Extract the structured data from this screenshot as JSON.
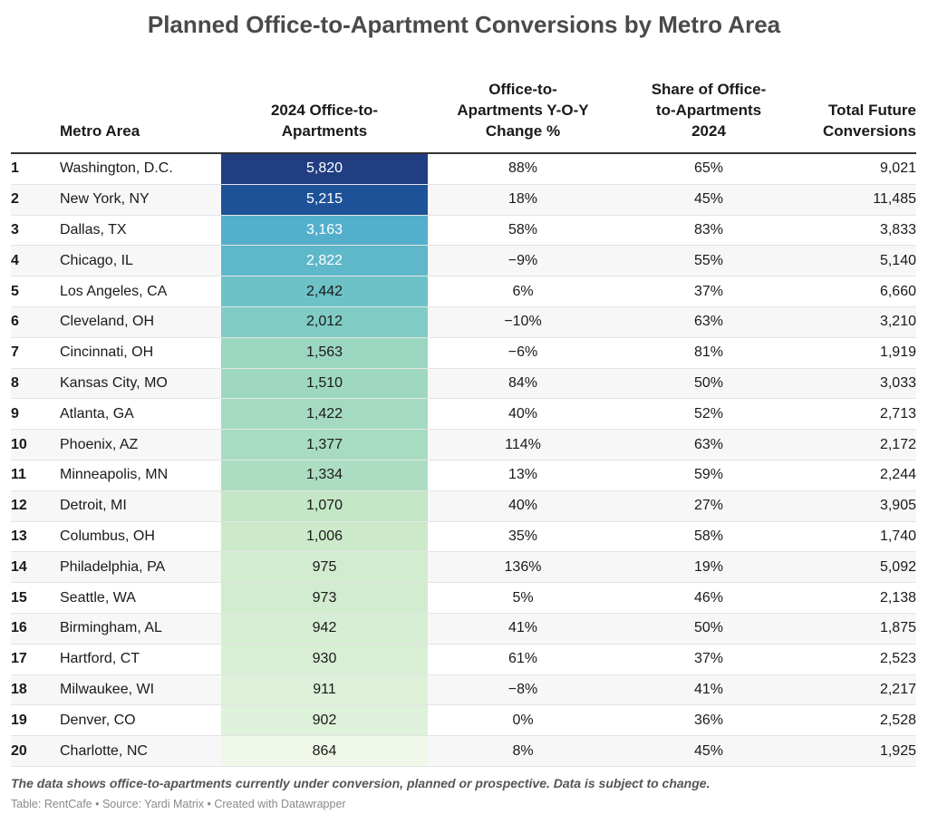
{
  "chart_data": {
    "type": "table",
    "title": "Planned Office-to-Apartment Conversions by Metro Area",
    "columns": [
      "",
      "Metro Area",
      "2024 Office-to-\nApartments",
      "Office-to-\nApartments Y-O-Y\nChange %",
      "Share of Office-\nto-Apartments\n2024",
      "Total Future\nConversions"
    ],
    "rows": [
      {
        "rank": "1",
        "metro": "Washington, D.C.",
        "value": 5820,
        "value_label": "5,820",
        "yoy": "88%",
        "share": "65%",
        "total": "9,021"
      },
      {
        "rank": "2",
        "metro": "New York, NY",
        "value": 5215,
        "value_label": "5,215",
        "yoy": "18%",
        "share": "45%",
        "total": "11,485"
      },
      {
        "rank": "3",
        "metro": "Dallas, TX",
        "value": 3163,
        "value_label": "3,163",
        "yoy": "58%",
        "share": "83%",
        "total": "3,833"
      },
      {
        "rank": "4",
        "metro": "Chicago, IL",
        "value": 2822,
        "value_label": "2,822",
        "yoy": "−9%",
        "share": "55%",
        "total": "5,140"
      },
      {
        "rank": "5",
        "metro": "Los Angeles, CA",
        "value": 2442,
        "value_label": "2,442",
        "yoy": "6%",
        "share": "37%",
        "total": "6,660"
      },
      {
        "rank": "6",
        "metro": "Cleveland, OH",
        "value": 2012,
        "value_label": "2,012",
        "yoy": "−10%",
        "share": "63%",
        "total": "3,210"
      },
      {
        "rank": "7",
        "metro": "Cincinnati, OH",
        "value": 1563,
        "value_label": "1,563",
        "yoy": "−6%",
        "share": "81%",
        "total": "1,919"
      },
      {
        "rank": "8",
        "metro": "Kansas City, MO",
        "value": 1510,
        "value_label": "1,510",
        "yoy": "84%",
        "share": "50%",
        "total": "3,033"
      },
      {
        "rank": "9",
        "metro": "Atlanta, GA",
        "value": 1422,
        "value_label": "1,422",
        "yoy": "40%",
        "share": "52%",
        "total": "2,713"
      },
      {
        "rank": "10",
        "metro": "Phoenix, AZ",
        "value": 1377,
        "value_label": "1,377",
        "yoy": "114%",
        "share": "63%",
        "total": "2,172"
      },
      {
        "rank": "11",
        "metro": "Minneapolis, MN",
        "value": 1334,
        "value_label": "1,334",
        "yoy": "13%",
        "share": "59%",
        "total": "2,244"
      },
      {
        "rank": "12",
        "metro": "Detroit, MI",
        "value": 1070,
        "value_label": "1,070",
        "yoy": "40%",
        "share": "27%",
        "total": "3,905"
      },
      {
        "rank": "13",
        "metro": "Columbus, OH",
        "value": 1006,
        "value_label": "1,006",
        "yoy": "35%",
        "share": "58%",
        "total": "1,740"
      },
      {
        "rank": "14",
        "metro": "Philadelphia, PA",
        "value": 975,
        "value_label": "975",
        "yoy": "136%",
        "share": "19%",
        "total": "5,092"
      },
      {
        "rank": "15",
        "metro": "Seattle, WA",
        "value": 973,
        "value_label": "973",
        "yoy": "5%",
        "share": "46%",
        "total": "2,138"
      },
      {
        "rank": "16",
        "metro": "Birmingham, AL",
        "value": 942,
        "value_label": "942",
        "yoy": "41%",
        "share": "50%",
        "total": "1,875"
      },
      {
        "rank": "17",
        "metro": "Hartford, CT",
        "value": 930,
        "value_label": "930",
        "yoy": "61%",
        "share": "37%",
        "total": "2,523"
      },
      {
        "rank": "18",
        "metro": "Milwaukee, WI",
        "value": 911,
        "value_label": "911",
        "yoy": "−8%",
        "share": "41%",
        "total": "2,217"
      },
      {
        "rank": "19",
        "metro": "Denver, CO",
        "value": 902,
        "value_label": "902",
        "yoy": "0%",
        "share": "36%",
        "total": "2,528"
      },
      {
        "rank": "20",
        "metro": "Charlotte, NC",
        "value": 864,
        "value_label": "864",
        "yoy": "8%",
        "share": "45%",
        "total": "1,925"
      }
    ],
    "note": "The data shows office-to-apartments currently under conversion, planned or prospective. Data is subject to change.",
    "source": "Table: RentCafe • Source: Yardi Matrix • Created with Datawrapper"
  },
  "colors": {
    "heat_scale": [
      "#eff8e8",
      "#c6e8c5",
      "#9dd7c1",
      "#72c7c6",
      "#52adcc",
      "#1a6fb5",
      "#213e83"
    ]
  }
}
